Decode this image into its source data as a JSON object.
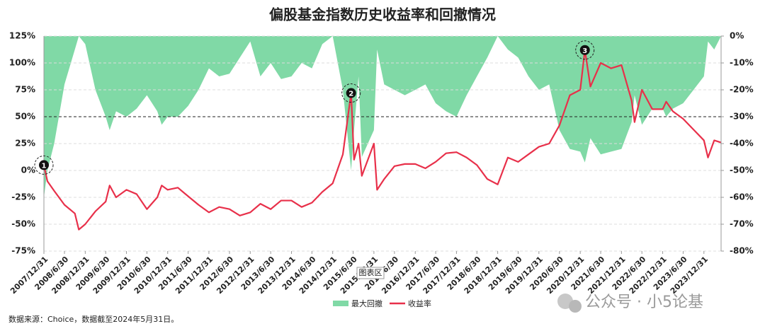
{
  "chart_data": {
    "type": "line-area",
    "title": "偏股基金指数历史收益率和回撤情况",
    "x": [
      "2007/12/31",
      "2008/1/31",
      "2008/3/31",
      "2008/6/30",
      "2008/9/30",
      "2008/11/4",
      "2008/12/31",
      "2009/3/31",
      "2009/6/30",
      "2009/8/4",
      "2009/9/30",
      "2009/12/31",
      "2010/3/31",
      "2010/6/30",
      "2010/9/30",
      "2010/11/8",
      "2010/12/31",
      "2011/3/31",
      "2011/6/30",
      "2011/9/30",
      "2011/12/31",
      "2012/3/31",
      "2012/6/30",
      "2012/9/30",
      "2012/12/31",
      "2013/3/31",
      "2013/6/30",
      "2013/9/30",
      "2013/12/31",
      "2014/3/31",
      "2014/6/30",
      "2014/9/30",
      "2014/12/31",
      "2015/3/31",
      "2015/6/12",
      "2015/7/8",
      "2015/8/17",
      "2015/9/15",
      "2015/12/31",
      "2016/1/28",
      "2016/3/31",
      "2016/6/30",
      "2016/9/30",
      "2016/12/31",
      "2017/3/31",
      "2017/6/30",
      "2017/9/30",
      "2017/12/31",
      "2018/3/31",
      "2018/6/30",
      "2018/9/30",
      "2018/12/31",
      "2019/3/31",
      "2019/6/30",
      "2019/9/30",
      "2019/12/31",
      "2020/3/31",
      "2020/6/30",
      "2020/9/30",
      "2020/12/31",
      "2021/2/10",
      "2021/3/31",
      "2021/6/30",
      "2021/9/30",
      "2021/12/31",
      "2022/3/31",
      "2022/4/26",
      "2022/6/30",
      "2022/9/30",
      "2022/12/31",
      "2023/1/31",
      "2023/3/31",
      "2023/6/30",
      "2023/9/30",
      "2023/12/31",
      "2024/2/5",
      "2024/3/31",
      "2024/5/31"
    ],
    "series": [
      {
        "name": "最大回撤",
        "color": "#80d9a6",
        "axis": "y2",
        "kind": "area",
        "values": [
          -60,
          -50,
          -40,
          -18,
          -5,
          0,
          -3,
          -20,
          -30,
          -35,
          -28,
          -30,
          -27,
          -22,
          -28,
          -33,
          -30,
          -30,
          -26,
          -20,
          -12,
          -15,
          -14,
          -8,
          -2,
          -15,
          -10,
          -16,
          -15,
          -10,
          -12,
          -3,
          0,
          -20,
          -50,
          -35,
          -15,
          -45,
          -35,
          -5,
          -18,
          -20,
          -22,
          -20,
          -18,
          -25,
          -28,
          -30,
          -22,
          -15,
          -8,
          0,
          -5,
          -8,
          -15,
          -20,
          -18,
          -35,
          -42,
          -43,
          -47,
          -38,
          -44,
          -43,
          -42,
          -32,
          -22,
          -33,
          -27,
          -27,
          -30,
          -27,
          -25,
          -20,
          -15,
          -2,
          -5,
          0
        ]
      },
      {
        "name": "收益率",
        "color": "#e8304a",
        "kind": "line",
        "values": [
          5,
          -10,
          -19,
          -32,
          -40,
          -55,
          -50,
          -38,
          -29,
          -14,
          -25,
          -18,
          -22,
          -36,
          -25,
          -14,
          -18,
          -16,
          -24,
          -32,
          -39,
          -34,
          -36,
          -42,
          -39,
          -31,
          -36,
          -28,
          -28,
          -34,
          -30,
          -20,
          -12,
          15,
          72,
          10,
          25,
          -5,
          25,
          -18,
          -8,
          4,
          6,
          6,
          2,
          8,
          16,
          17,
          12,
          5,
          -8,
          -13,
          12,
          8,
          15,
          22,
          25,
          42,
          70,
          75,
          112,
          78,
          100,
          95,
          98,
          65,
          45,
          75,
          57,
          57,
          64,
          55,
          48,
          38,
          28,
          12,
          28,
          26
        ]
      }
    ],
    "ylim": [
      -75,
      125
    ],
    "yticks": [
      {
        "value": -75,
        "label": "-75%"
      },
      {
        "value": -50,
        "label": "-50%"
      },
      {
        "value": -25,
        "label": "-25%"
      },
      {
        "value": 0,
        "label": "0%"
      },
      {
        "value": 25,
        "label": "25%"
      },
      {
        "value": 50,
        "label": "50%"
      },
      {
        "value": 75,
        "label": "75%"
      },
      {
        "value": 100,
        "label": "100%"
      },
      {
        "value": 125,
        "label": "125%"
      }
    ],
    "y2lim": [
      -80,
      0
    ],
    "y2ticks": [
      {
        "value": 0,
        "label": "0%"
      },
      {
        "value": -10,
        "label": "-10%"
      },
      {
        "value": -20,
        "label": "-20%"
      },
      {
        "value": -30,
        "label": "-30%"
      },
      {
        "value": -40,
        "label": "-40%"
      },
      {
        "value": -50,
        "label": "-50%"
      },
      {
        "value": -60,
        "label": "-60%"
      },
      {
        "value": -70,
        "label": "-70%"
      },
      {
        "value": -80,
        "label": "-80%"
      }
    ],
    "xticks": [
      "2007/12/31",
      "2008/6/30",
      "2008/12/31",
      "2009/6/30",
      "2009/12/31",
      "2010/6/30",
      "2010/12/31",
      "2011/6/30",
      "2011/12/31",
      "2012/6/30",
      "2012/12/31",
      "2013/6/30",
      "2013/12/31",
      "2014/6/30",
      "2014/12/31",
      "2015/6/30",
      "2015/12/31",
      "2016/6/30",
      "2016/12/31",
      "2017/6/30",
      "2017/12/31",
      "2018/6/30",
      "2018/12/31",
      "2019/6/30",
      "2019/12/31",
      "2020/6/30",
      "2020/12/31",
      "2021/6/30",
      "2021/12/31",
      "2022/6/30",
      "2022/12/31",
      "2023/6/30",
      "2023/12/31"
    ],
    "grid": true,
    "reference_lines": [
      50
    ],
    "annotations": [
      {
        "text": "1",
        "x": "2007/12/31"
      },
      {
        "text": "2",
        "x": "2015/6/12"
      },
      {
        "text": "3",
        "x": "2021/2/10"
      }
    ],
    "tooltip": "图表区",
    "source": "数据来源：Choice，数据截至2024年5月31日。",
    "watermark": "公众号 · 小5论基"
  }
}
